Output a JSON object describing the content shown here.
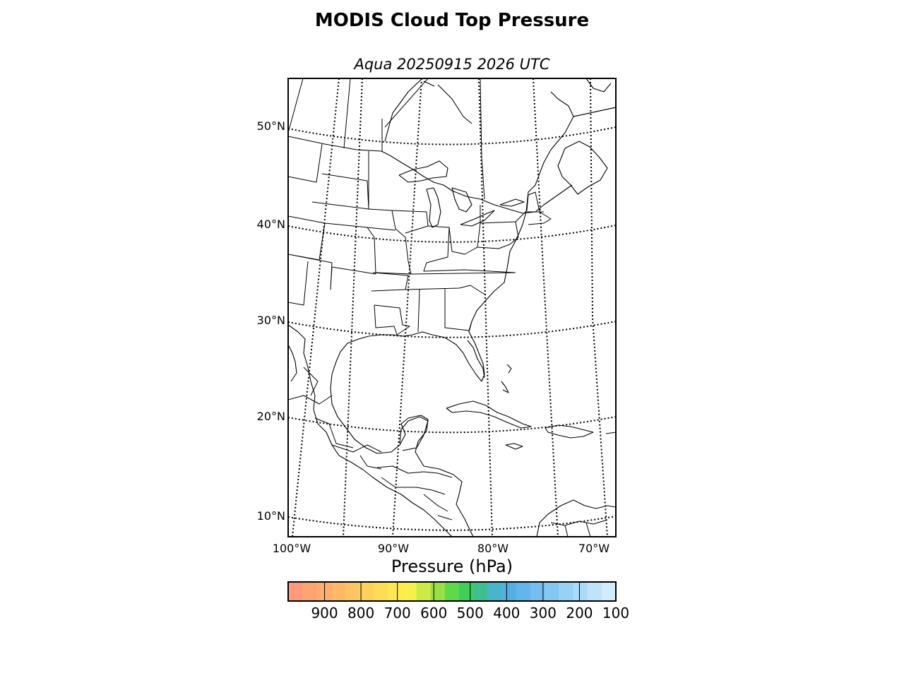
{
  "title": "MODIS Cloud Top Pressure",
  "subtitle": "Aqua 20250915 2026 UTC",
  "map": {
    "projection": "lambert-conformal",
    "lat_labels": [
      "50°N",
      "40°N",
      "30°N",
      "20°N",
      "10°N"
    ],
    "lon_labels": [
      "100°W",
      "90°W",
      "80°W",
      "70°W"
    ],
    "extent": {
      "lon_min": -100,
      "lon_max": -68,
      "lat_min": 8,
      "lat_max": 55
    }
  },
  "colorbar": {
    "label": "Pressure (hPa)",
    "ticks": [
      "900",
      "800",
      "700",
      "600",
      "500",
      "400",
      "300",
      "200",
      "100"
    ],
    "range": [
      1000,
      100
    ],
    "colors": [
      "#ff9a7a",
      "#ffa374",
      "#ffad6e",
      "#ffb868",
      "#ffc462",
      "#ffd05c",
      "#ffdc56",
      "#ffe850",
      "#f8f04a",
      "#cdea45",
      "#9ae044",
      "#5fd84a",
      "#3ecf58",
      "#3fbf8f",
      "#48b6c6",
      "#55b0e2",
      "#62b6ec",
      "#72bff0",
      "#84c8f2",
      "#97d1f5",
      "#aadaf8",
      "#bfe3fa",
      "#d2ecfc"
    ]
  }
}
